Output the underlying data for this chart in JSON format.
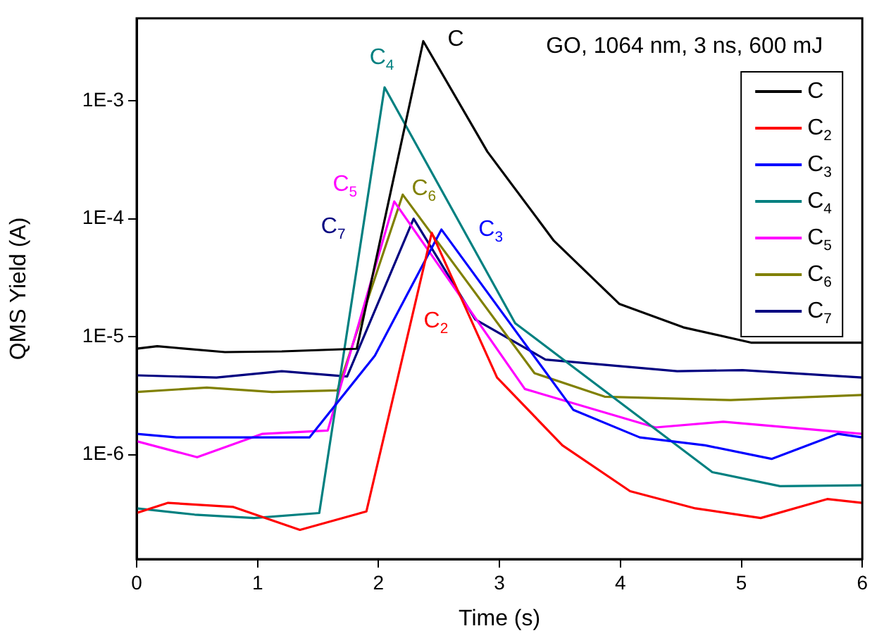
{
  "chart_data": {
    "type": "line",
    "xlabel": "Time (s)",
    "ylabel": "QMS Yield (A)",
    "log": "y",
    "xlim": [
      0,
      6
    ],
    "xticks": [
      0,
      1,
      2,
      3,
      4,
      5,
      6
    ],
    "ylim": [
      1.3e-07,
      0.005
    ],
    "yticks": [
      {
        "value": 1e-06,
        "label": "1E-6"
      },
      {
        "value": 1e-05,
        "label": "1E-5"
      },
      {
        "value": 0.0001,
        "label": "1E-4"
      },
      {
        "value": 0.001,
        "label": "1E-3"
      }
    ],
    "grid": false,
    "legend": "top right",
    "marker": "none",
    "line_style": "solid",
    "series": [
      {
        "name": "C",
        "color": "#000000",
        "x": [
          0,
          0.17,
          0.73,
          1.2,
          1.82,
          2.37,
          2.9,
          3.45,
          3.99,
          4.52,
          5.08,
          6
        ],
        "values": [
          7.9e-06,
          8.3e-06,
          7.4e-06,
          7.5e-06,
          7.9e-06,
          0.0032,
          0.00037,
          6.5e-05,
          1.9e-05,
          1.2e-05,
          8.9e-06,
          8.9e-06
        ]
      },
      {
        "name": "C$_{2}$",
        "color": "#ff0000",
        "x": [
          0,
          0.26,
          0.8,
          1.35,
          1.9,
          2.44,
          2.98,
          3.52,
          4.08,
          4.62,
          5.16,
          5.71,
          6
        ],
        "values": [
          3.2e-07,
          3.9e-07,
          3.6e-07,
          2.3e-07,
          3.3e-07,
          7.6e-05,
          4.5e-06,
          1.2e-06,
          4.9e-07,
          3.5e-07,
          2.9e-07,
          4.2e-07,
          3.9e-07
        ]
      },
      {
        "name": "C$_{3}$",
        "color": "#0000ff",
        "x": [
          0,
          0.33,
          1.43,
          1.97,
          2.52,
          3.61,
          4.16,
          4.7,
          5.25,
          5.8,
          6
        ],
        "values": [
          1.5e-06,
          1.4e-06,
          1.4e-06,
          6.9e-06,
          8.1e-05,
          2.4e-06,
          1.4e-06,
          1.2e-06,
          9.2e-07,
          1.5e-06,
          1.4e-06
        ]
      },
      {
        "name": "C$_{4}$",
        "color": "#008080",
        "x": [
          0,
          0.48,
          0.97,
          1.51,
          2.05,
          3.13,
          4.76,
          5.32,
          6
        ],
        "values": [
          3.5e-07,
          3.1e-07,
          2.9e-07,
          3.2e-07,
          0.0013,
          1.3e-05,
          7.1e-07,
          5.4e-07,
          5.5e-07
        ]
      },
      {
        "name": "C$_{5}$",
        "color": "#ff00ff",
        "x": [
          0,
          0.5,
          1.04,
          1.58,
          2.13,
          3.21,
          4.29,
          4.85,
          6
        ],
        "values": [
          1.3e-06,
          9.5e-07,
          1.5e-06,
          1.6e-06,
          0.00014,
          3.6e-06,
          1.7e-06,
          1.9e-06,
          1.5e-06
        ]
      },
      {
        "name": "C$_{6}$",
        "color": "#808000",
        "x": [
          0,
          0.58,
          1.12,
          1.66,
          2.2,
          3.29,
          3.87,
          4.91,
          6
        ],
        "values": [
          3.4e-06,
          3.7e-06,
          3.4e-06,
          3.5e-06,
          0.00016,
          4.9e-06,
          3.1e-06,
          2.9e-06,
          3.2e-06
        ]
      },
      {
        "name": "C$_{7}$",
        "color": "#000080",
        "x": [
          0,
          0.66,
          1.2,
          1.74,
          2.29,
          2.8,
          3.38,
          4.47,
          5.01,
          6
        ],
        "values": [
          4.7e-06,
          4.5e-06,
          5.1e-06,
          4.6e-06,
          0.0001,
          1.4e-05,
          6.4e-06,
          5.1e-06,
          5.2e-06,
          4.5e-06
        ]
      }
    ],
    "annotations": [
      "GO, 1064 nm, 3 ns, 600 mJ"
    ]
  }
}
